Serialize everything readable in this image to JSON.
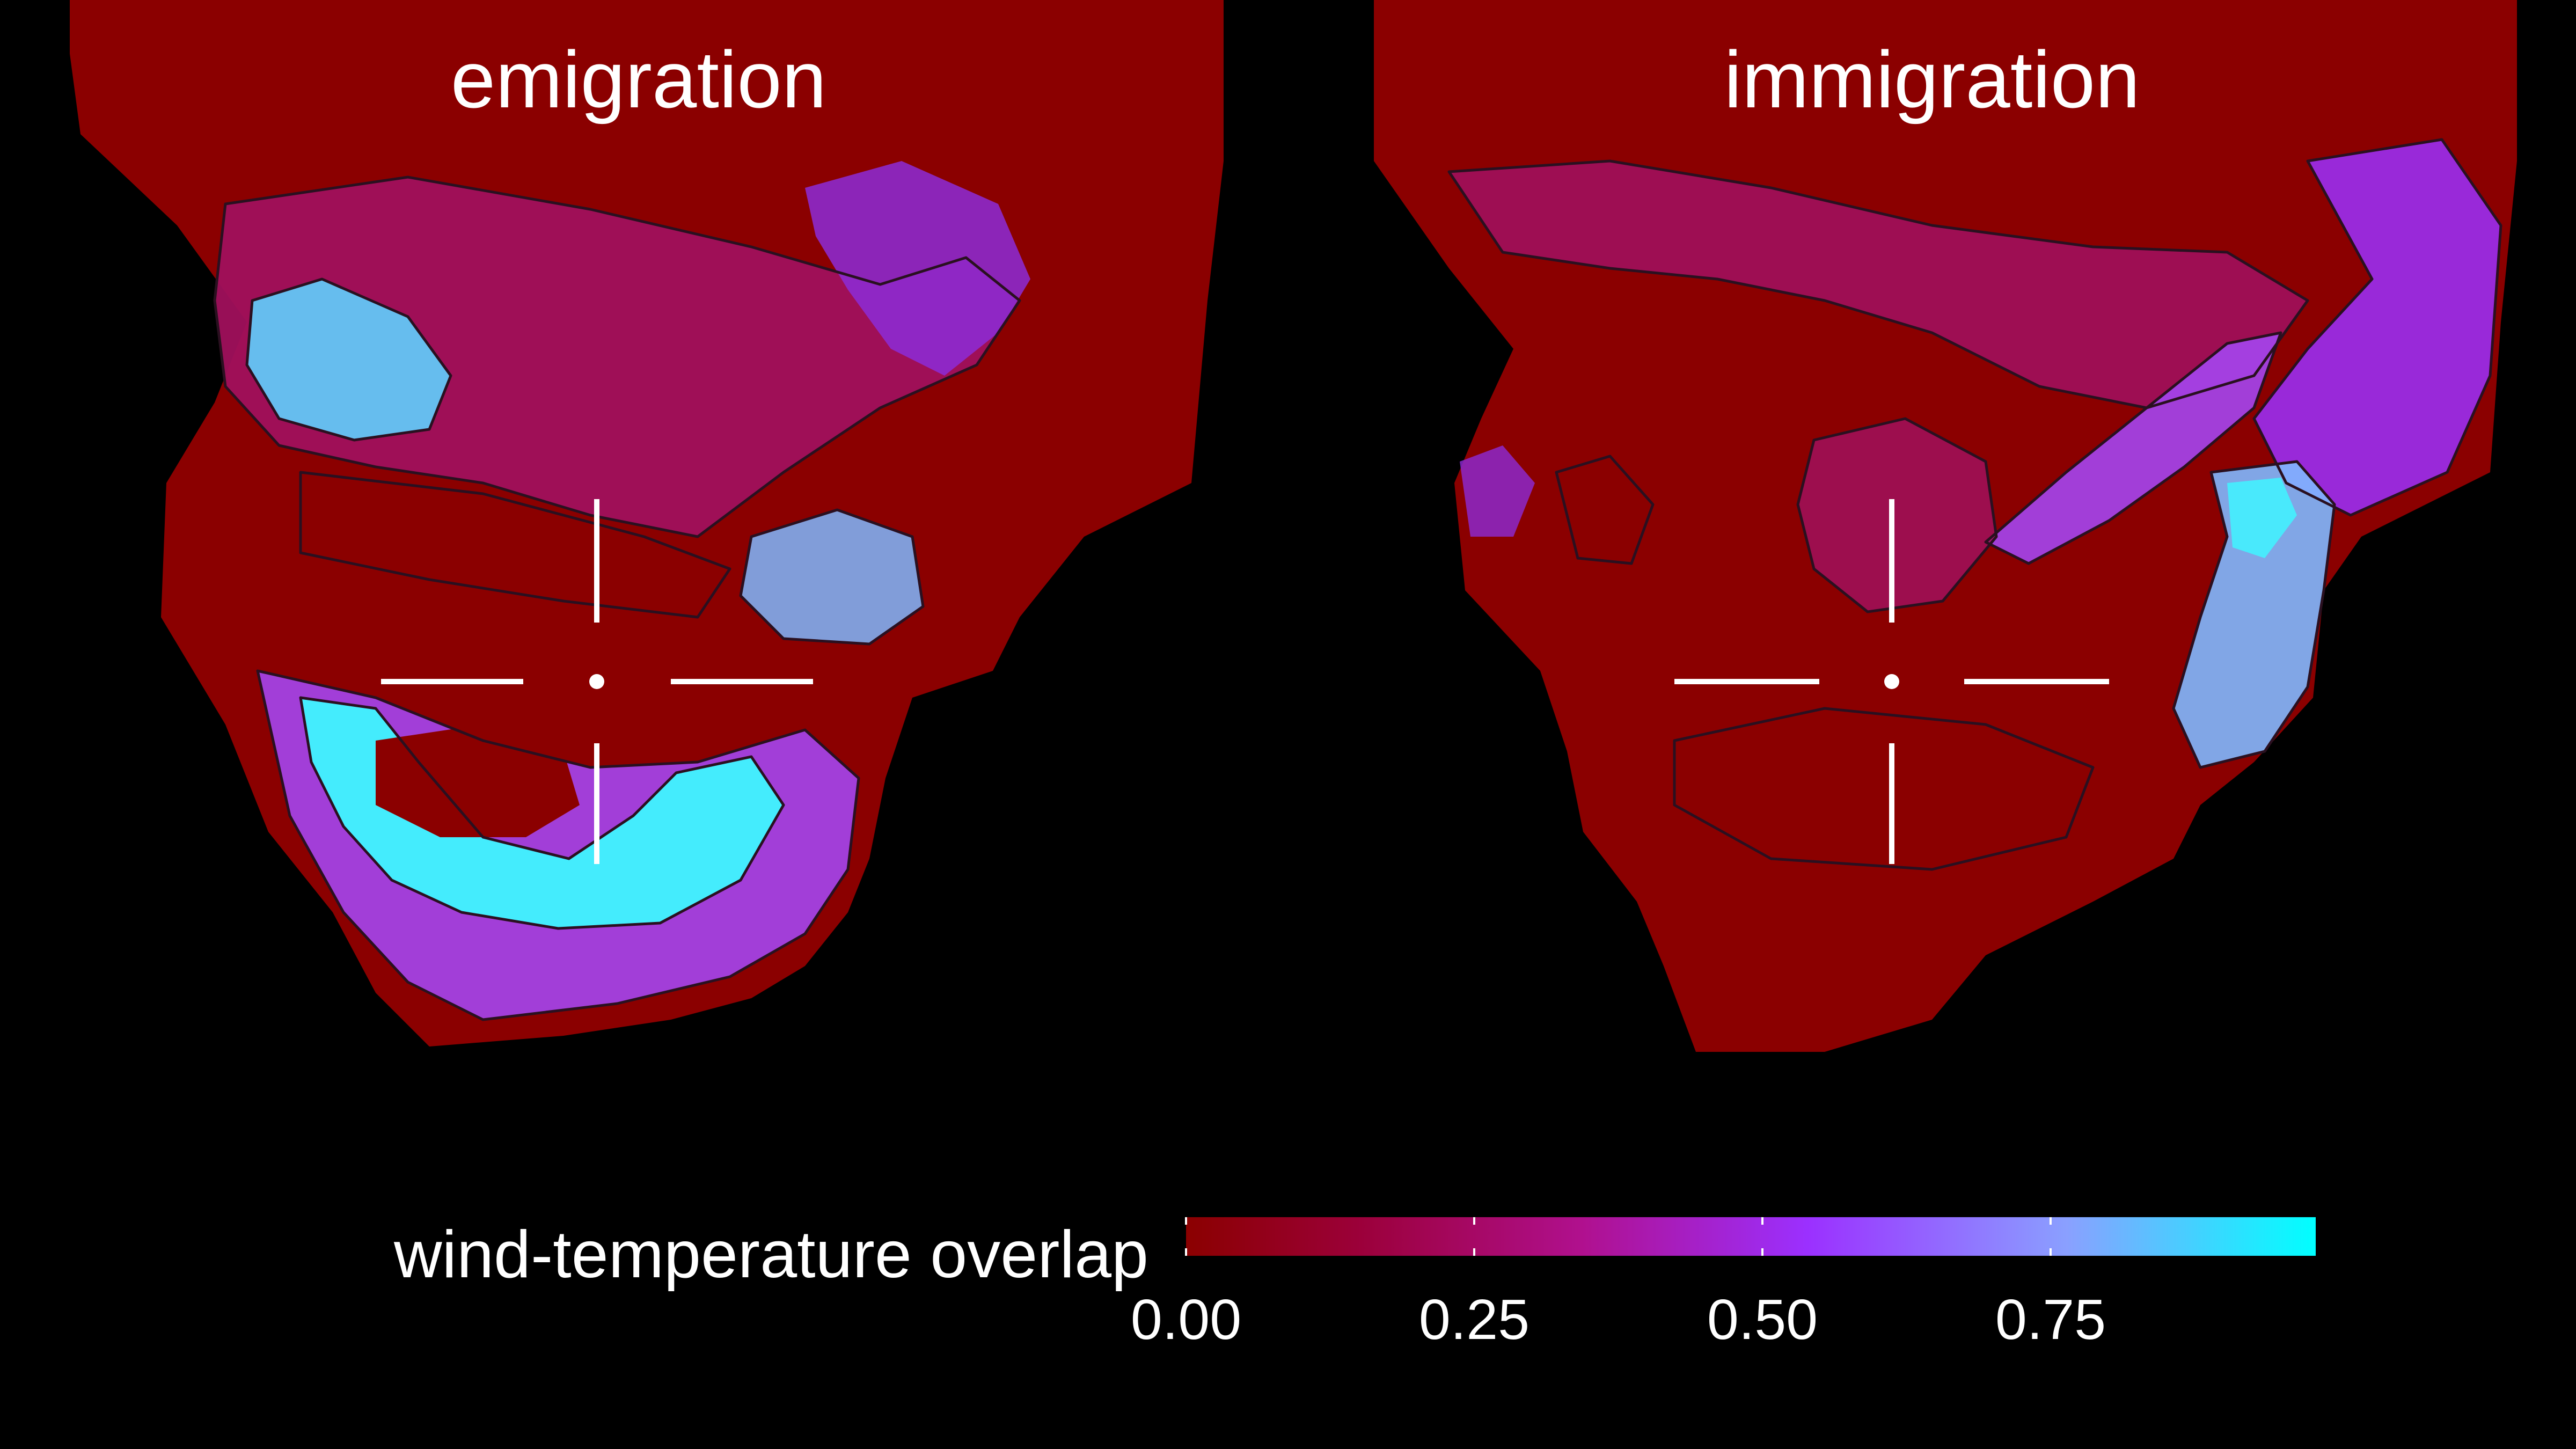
{
  "panels": [
    {
      "title": "emigration"
    },
    {
      "title": "immigration"
    }
  ],
  "legend": {
    "title": "wind-temperature overlap",
    "ticks": [
      "0.00",
      "0.25",
      "0.50",
      "0.75"
    ],
    "tick_values": [
      0.0,
      0.25,
      0.5,
      0.75
    ],
    "range": [
      0.0,
      0.98
    ],
    "colors": [
      "#8b0000",
      "#9b0038",
      "#b0108e",
      "#9b30ff",
      "#8aa0ff",
      "#00ffff"
    ]
  },
  "colors": {
    "background": "#000000",
    "low": "#8b0000",
    "mid": "#b0108e",
    "violet": "#9b30ff",
    "high": "#00ffff"
  }
}
